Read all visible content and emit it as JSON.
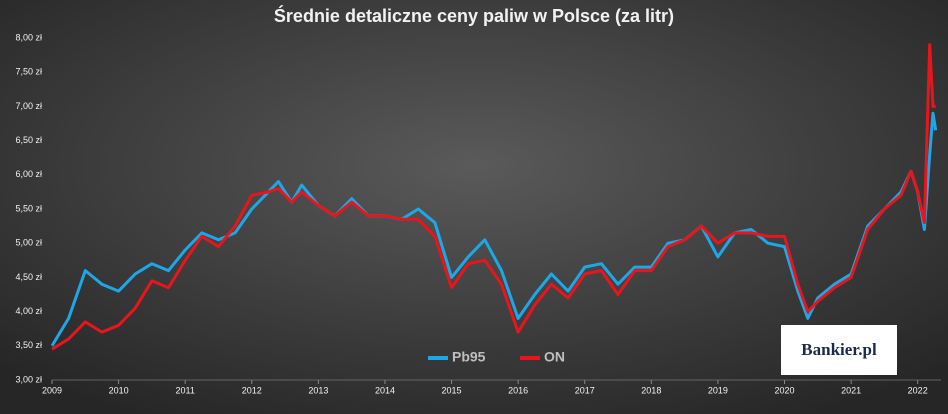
{
  "chart_data": {
    "type": "line",
    "title": "Średnie detaliczne ceny paliw w Polsce (za litr)",
    "watermark": "Bankier.pl",
    "x": [
      2009.0,
      2009.25,
      2009.5,
      2009.75,
      2010.0,
      2010.25,
      2010.5,
      2010.75,
      2011.0,
      2011.25,
      2011.5,
      2011.75,
      2012.0,
      2012.25,
      2012.4,
      2012.6,
      2012.75,
      2013.0,
      2013.25,
      2013.5,
      2013.75,
      2014.0,
      2014.25,
      2014.5,
      2014.75,
      2015.0,
      2015.25,
      2015.5,
      2015.75,
      2016.0,
      2016.25,
      2016.5,
      2016.75,
      2017.0,
      2017.25,
      2017.5,
      2017.75,
      2018.0,
      2018.25,
      2018.5,
      2018.75,
      2019.0,
      2019.25,
      2019.5,
      2019.75,
      2020.0,
      2020.2,
      2020.35,
      2020.5,
      2020.75,
      2021.0,
      2021.25,
      2021.5,
      2021.75,
      2021.9,
      2022.0,
      2022.1,
      2022.18,
      2022.23,
      2022.27
    ],
    "series": [
      {
        "name": "Pb95",
        "color": "#1ea7e8",
        "values": [
          3.5,
          3.9,
          4.6,
          4.4,
          4.3,
          4.55,
          4.7,
          4.6,
          4.9,
          5.15,
          5.05,
          5.15,
          5.5,
          5.75,
          5.9,
          5.6,
          5.85,
          5.55,
          5.4,
          5.65,
          5.4,
          5.4,
          5.35,
          5.5,
          5.3,
          4.5,
          4.8,
          5.05,
          4.6,
          3.9,
          4.25,
          4.55,
          4.3,
          4.65,
          4.7,
          4.4,
          4.65,
          4.65,
          5.0,
          5.05,
          5.25,
          4.8,
          5.15,
          5.2,
          5.0,
          4.95,
          4.3,
          3.9,
          4.2,
          4.4,
          4.55,
          5.25,
          5.5,
          5.75,
          6.05,
          5.75,
          5.2,
          6.3,
          6.9,
          6.65
        ]
      },
      {
        "name": "ON",
        "color": "#e8151b",
        "values": [
          3.45,
          3.6,
          3.85,
          3.7,
          3.8,
          4.05,
          4.45,
          4.35,
          4.75,
          5.1,
          4.95,
          5.25,
          5.7,
          5.75,
          5.8,
          5.6,
          5.75,
          5.55,
          5.4,
          5.6,
          5.4,
          5.4,
          5.35,
          5.35,
          5.1,
          4.35,
          4.7,
          4.75,
          4.4,
          3.7,
          4.1,
          4.4,
          4.2,
          4.55,
          4.6,
          4.25,
          4.6,
          4.6,
          4.95,
          5.05,
          5.25,
          5.0,
          5.15,
          5.15,
          5.1,
          5.1,
          4.4,
          4.0,
          4.15,
          4.35,
          4.5,
          5.2,
          5.5,
          5.7,
          6.05,
          5.75,
          5.3,
          7.9,
          7.0,
          7.0
        ]
      }
    ],
    "xlim": [
      2009,
      2022.35
    ],
    "xticks": [
      2009,
      2010,
      2011,
      2012,
      2013,
      2014,
      2015,
      2016,
      2017,
      2018,
      2019,
      2020,
      2021,
      2022
    ],
    "ylim": [
      3,
      8
    ],
    "yticks": [
      {
        "value": 3,
        "label": "3,00 zł"
      },
      {
        "value": 3.5,
        "label": "3,50 zł"
      },
      {
        "value": 4,
        "label": "4,00 zł"
      },
      {
        "value": 4.5,
        "label": "4,50 zł"
      },
      {
        "value": 5,
        "label": "5,00 zł"
      },
      {
        "value": 5.5,
        "label": "5,50 zł"
      },
      {
        "value": 6,
        "label": "6,00 zł"
      },
      {
        "value": 6.5,
        "label": "6,50 zł"
      },
      {
        "value": 7,
        "label": "7,00 zł"
      },
      {
        "value": 7.5,
        "label": "7,50 zł"
      },
      {
        "value": 8,
        "label": "8,00 zł"
      }
    ],
    "grid": false,
    "legend": "bottom"
  }
}
